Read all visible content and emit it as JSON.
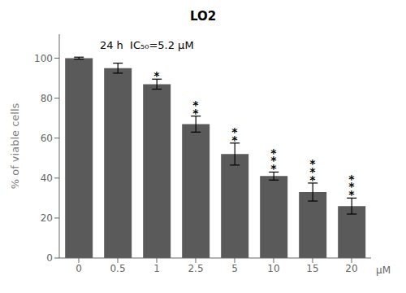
{
  "chart_data": {
    "type": "bar",
    "title": "LO2",
    "ylabel": "% of viable cells",
    "xlabel": "μM",
    "annotation": "24 h  IC₅₀=5.2 μM",
    "categories": [
      "0",
      "0.5",
      "1",
      "2.5",
      "5",
      "10",
      "15",
      "20"
    ],
    "values": [
      100,
      95,
      87,
      67,
      52,
      41,
      33,
      26
    ],
    "errors": [
      0.5,
      2.5,
      2.5,
      4.0,
      5.5,
      2.0,
      4.5,
      4.0
    ],
    "significance": [
      "",
      "",
      "*",
      "**",
      "**",
      "***",
      "***",
      "***"
    ],
    "color": "#5a5a5a",
    "ylim": [
      0,
      112
    ],
    "yticks": [
      0,
      20,
      40,
      60,
      80,
      100
    ],
    "grid": false
  }
}
